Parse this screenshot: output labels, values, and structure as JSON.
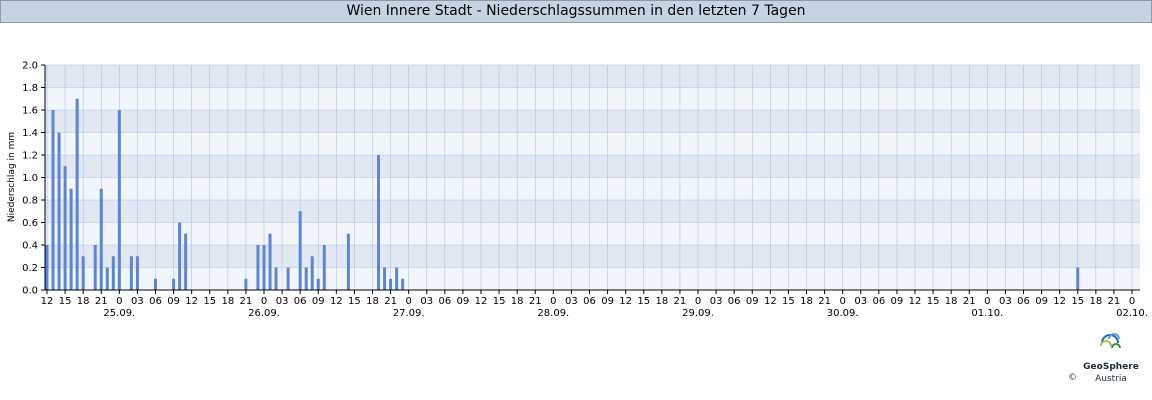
{
  "chart_data": {
    "type": "bar",
    "title": "Wien Innere Stadt - Niederschlagssummen in den letzten 7 Tagen",
    "ylabel": "Niederschlag in mm",
    "xlabel": "",
    "ylim": [
      0,
      2.0
    ],
    "y_ticks": [
      "0.0",
      "0.2",
      "0.4",
      "0.6",
      "0.8",
      "1.0",
      "1.2",
      "1.4",
      "1.6",
      "1.8",
      "2.0"
    ],
    "grid": true,
    "hour_tick_labels": [
      "12",
      "15",
      "18",
      "21",
      "0",
      "03",
      "06",
      "09",
      "12",
      "15",
      "18",
      "21",
      "0",
      "03",
      "06",
      "09",
      "12",
      "15",
      "18",
      "21",
      "0",
      "03",
      "06",
      "09",
      "12",
      "15",
      "18",
      "21",
      "0",
      "03",
      "06",
      "09",
      "12",
      "15",
      "18",
      "21",
      "0",
      "03",
      "06",
      "09",
      "12",
      "15",
      "18",
      "21",
      "0",
      "03",
      "06",
      "09",
      "12",
      "15",
      "18",
      "21",
      "0",
      "03",
      "06",
      "09",
      "12",
      "15",
      "18",
      "21",
      "0"
    ],
    "date_labels": [
      "25.09.",
      "26.09.",
      "27.09.",
      "28.09.",
      "29.09.",
      "30.09.",
      "01.10.",
      "02.10."
    ],
    "x_unit": "hours since 24.09. 12:00",
    "bars": [
      {
        "x": 0,
        "value": 0.4
      },
      {
        "x": 1,
        "value": 1.6
      },
      {
        "x": 2,
        "value": 1.4
      },
      {
        "x": 3,
        "value": 1.1
      },
      {
        "x": 4,
        "value": 0.9
      },
      {
        "x": 5,
        "value": 1.7
      },
      {
        "x": 6,
        "value": 0.3
      },
      {
        "x": 8,
        "value": 0.4
      },
      {
        "x": 9,
        "value": 0.9
      },
      {
        "x": 10,
        "value": 0.2
      },
      {
        "x": 11,
        "value": 0.3
      },
      {
        "x": 12,
        "value": 1.6
      },
      {
        "x": 14,
        "value": 0.3
      },
      {
        "x": 15,
        "value": 0.3
      },
      {
        "x": 18,
        "value": 0.1
      },
      {
        "x": 21,
        "value": 0.1
      },
      {
        "x": 22,
        "value": 0.6
      },
      {
        "x": 23,
        "value": 0.5
      },
      {
        "x": 33,
        "value": 0.1
      },
      {
        "x": 35,
        "value": 0.4
      },
      {
        "x": 36,
        "value": 0.4
      },
      {
        "x": 37,
        "value": 0.5
      },
      {
        "x": 38,
        "value": 0.2
      },
      {
        "x": 40,
        "value": 0.2
      },
      {
        "x": 42,
        "value": 0.7
      },
      {
        "x": 43,
        "value": 0.2
      },
      {
        "x": 44,
        "value": 0.3
      },
      {
        "x": 45,
        "value": 0.1
      },
      {
        "x": 46,
        "value": 0.4
      },
      {
        "x": 50,
        "value": 0.5
      },
      {
        "x": 55,
        "value": 1.2
      },
      {
        "x": 56,
        "value": 0.2
      },
      {
        "x": 57,
        "value": 0.1
      },
      {
        "x": 58,
        "value": 0.2
      },
      {
        "x": 59,
        "value": 0.1
      },
      {
        "x": 171,
        "value": 0.2
      }
    ]
  },
  "colors": {
    "bar": "#5b86d6",
    "band_light": "#f2f6fa",
    "band_dark": "#e1e8f1",
    "grid": "#a9c4e4",
    "title_bg": "#c5d3e3"
  },
  "branding": {
    "logo_name": "GeoSphere",
    "logo_sub": "Austria",
    "copyright": "©"
  }
}
